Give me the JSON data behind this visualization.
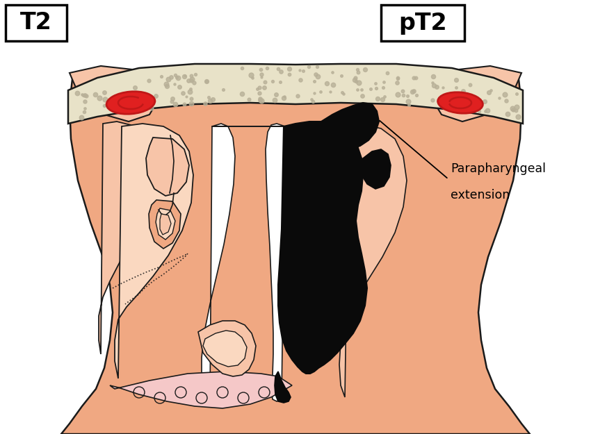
{
  "bg_color": "#ffffff",
  "skin_color": "#f0a882",
  "skin_medium": "#eda070",
  "skin_light": "#f7c4a8",
  "skin_lighter": "#fad8c0",
  "bone_color": "#e8e2c8",
  "bone_dots": "#b8b098",
  "tumor_color": "#0a0a0a",
  "pink_light": "#f5c8c8",
  "pink_medium": "#f0b0b0",
  "outline_color": "#1a1a1a",
  "red_vessel": "#c01818",
  "red_vessel_fill": "#e02020",
  "white": "#ffffff",
  "label_parapharyngeal_1": "Parapharyngeal",
  "label_parapharyngeal_2": "extension",
  "label_T2": "T2",
  "label_pT2": "pT2",
  "figsize": [
    8.5,
    6.25
  ],
  "dpi": 100
}
